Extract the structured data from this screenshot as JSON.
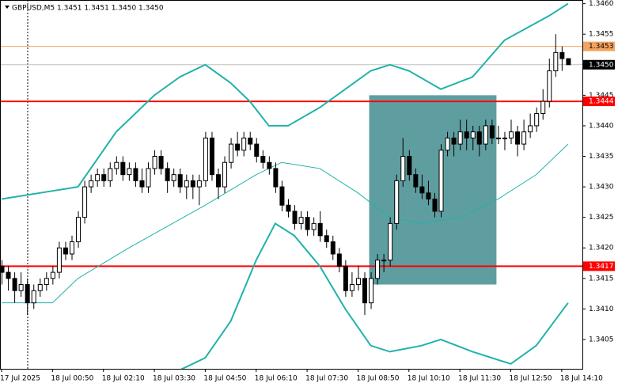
{
  "chart_data": {
    "type": "candlestick",
    "header": {
      "symbol": "GBPUSD,M5",
      "quote": "1.3451 1.3451 1.3450 1.3450"
    },
    "xlim": [
      -0.25,
      91.25
    ],
    "ylim": [
      1.34002,
      1.34606
    ],
    "yticks": [
      {
        "value": 1.346,
        "label": "1.3460"
      },
      1.3455,
      {
        "value": 1.345,
        "label": "1.3450"
      },
      1.3445,
      {
        "value": 1.344,
        "label": "1.3440"
      },
      1.3435,
      {
        "value": 1.343,
        "label": "1.3430"
      },
      1.3425,
      {
        "value": 1.342,
        "label": "1.3420"
      },
      1.3415,
      {
        "value": 1.341,
        "label": "1.3410"
      },
      1.3405
    ],
    "xticks": [
      {
        "value": 0,
        "label": "17 Jul 2025"
      },
      {
        "value": 8,
        "label": "18 Jul 00:50"
      },
      {
        "value": 16,
        "label": "18 Jul 02:10"
      },
      {
        "value": 24,
        "label": "18 Jul 03:30"
      },
      {
        "value": 32,
        "label": "18 Jul 04:50"
      },
      {
        "value": 40,
        "label": "18 Jul 06:10"
      },
      {
        "value": 48,
        "label": "18 Jul 07:30"
      },
      {
        "value": 56,
        "label": "18 Jul 08:50"
      },
      {
        "value": 64,
        "label": "18 Jul 10:10"
      },
      {
        "value": 72,
        "label": "18 Jul 11:30"
      },
      {
        "value": 80,
        "label": "18 Jul 12:50"
      },
      {
        "value": 88,
        "label": "18 Jul 14:10"
      }
    ],
    "candles": [
      [
        1.3417,
        1.3418,
        1.3414,
        1.3416
      ],
      [
        1.3416,
        1.3417,
        1.3413,
        1.3415
      ],
      [
        1.3415,
        1.3416,
        1.3411,
        1.3413
      ],
      [
        1.3413,
        1.3416,
        1.3412,
        1.3414
      ],
      [
        1.3414,
        1.3415,
        1.3409,
        1.3411
      ],
      [
        1.3411,
        1.3414,
        1.341,
        1.3413
      ],
      [
        1.3413,
        1.3415,
        1.3412,
        1.3414
      ],
      [
        1.3414,
        1.3416,
        1.3413,
        1.3415
      ],
      [
        1.3415,
        1.3417,
        1.3414,
        1.3416
      ],
      [
        1.3416,
        1.3421,
        1.3415,
        1.342
      ],
      [
        1.342,
        1.3421,
        1.3418,
        1.3419
      ],
      [
        1.3419,
        1.3422,
        1.3418,
        1.3421
      ],
      [
        1.3421,
        1.3426,
        1.342,
        1.3425
      ],
      [
        1.3425,
        1.3431,
        1.3424,
        1.343
      ],
      [
        1.343,
        1.3432,
        1.3429,
        1.3431
      ],
      [
        1.3431,
        1.3433,
        1.343,
        1.3432
      ],
      [
        1.3432,
        1.3433,
        1.343,
        1.3431
      ],
      [
        1.3431,
        1.3434,
        1.343,
        1.3433
      ],
      [
        1.3433,
        1.3435,
        1.3432,
        1.3434
      ],
      [
        1.3434,
        1.3435,
        1.3431,
        1.3432
      ],
      [
        1.3432,
        1.3434,
        1.3431,
        1.3433
      ],
      [
        1.3433,
        1.3434,
        1.343,
        1.3431
      ],
      [
        1.3431,
        1.3433,
        1.3429,
        1.343
      ],
      [
        1.343,
        1.3434,
        1.3429,
        1.3433
      ],
      [
        1.3433,
        1.3436,
        1.3432,
        1.3435
      ],
      [
        1.3435,
        1.3436,
        1.3432,
        1.3433
      ],
      [
        1.3433,
        1.3434,
        1.3429,
        1.3431
      ],
      [
        1.3431,
        1.3433,
        1.343,
        1.3432
      ],
      [
        1.3432,
        1.3433,
        1.3429,
        1.343
      ],
      [
        1.343,
        1.3432,
        1.3428,
        1.3431
      ],
      [
        1.3431,
        1.3432,
        1.3428,
        1.343
      ],
      [
        1.343,
        1.3432,
        1.3427,
        1.3431
      ],
      [
        1.3431,
        1.3439,
        1.343,
        1.3438
      ],
      [
        1.3438,
        1.3439,
        1.3431,
        1.3432
      ],
      [
        1.3432,
        1.3433,
        1.3428,
        1.343
      ],
      [
        1.343,
        1.3435,
        1.3429,
        1.3434
      ],
      [
        1.3434,
        1.3438,
        1.3433,
        1.3437
      ],
      [
        1.3437,
        1.3439,
        1.3435,
        1.3436
      ],
      [
        1.3436,
        1.3439,
        1.3435,
        1.3438
      ],
      [
        1.3438,
        1.3439,
        1.3436,
        1.3437
      ],
      [
        1.3437,
        1.3438,
        1.3434,
        1.3435
      ],
      [
        1.3435,
        1.3436,
        1.3433,
        1.3434
      ],
      [
        1.3434,
        1.3435,
        1.3432,
        1.3433
      ],
      [
        1.3433,
        1.3434,
        1.3429,
        1.343
      ],
      [
        1.343,
        1.3431,
        1.3426,
        1.3427
      ],
      [
        1.3427,
        1.3428,
        1.3425,
        1.3426
      ],
      [
        1.3426,
        1.3427,
        1.3423,
        1.3424
      ],
      [
        1.3424,
        1.3426,
        1.3423,
        1.3425
      ],
      [
        1.3425,
        1.3426,
        1.3422,
        1.3423
      ],
      [
        1.3423,
        1.3425,
        1.3422,
        1.3424
      ],
      [
        1.3424,
        1.3426,
        1.3421,
        1.3422
      ],
      [
        1.3422,
        1.3423,
        1.342,
        1.3421
      ],
      [
        1.3421,
        1.3422,
        1.3418,
        1.3419
      ],
      [
        1.3419,
        1.342,
        1.3416,
        1.3417
      ],
      [
        1.3417,
        1.3418,
        1.3412,
        1.3413
      ],
      [
        1.3413,
        1.3416,
        1.3412,
        1.3414
      ],
      [
        1.3414,
        1.3417,
        1.3413,
        1.3415
      ],
      [
        1.3415,
        1.3416,
        1.3409,
        1.3411
      ],
      [
        1.3411,
        1.3416,
        1.341,
        1.3415
      ],
      [
        1.3415,
        1.3419,
        1.3414,
        1.3418
      ],
      [
        1.3418,
        1.3419,
        1.3416,
        1.3418
      ],
      [
        1.3418,
        1.3425,
        1.3417,
        1.3424
      ],
      [
        1.3424,
        1.3432,
        1.3423,
        1.3431
      ],
      [
        1.3431,
        1.3438,
        1.343,
        1.3435
      ],
      [
        1.3435,
        1.3436,
        1.3431,
        1.3432
      ],
      [
        1.3432,
        1.3433,
        1.3429,
        1.343
      ],
      [
        1.343,
        1.3432,
        1.3428,
        1.3429
      ],
      [
        1.3429,
        1.3431,
        1.3427,
        1.3428
      ],
      [
        1.3428,
        1.3429,
        1.3425,
        1.3426
      ],
      [
        1.3426,
        1.3437,
        1.3425,
        1.3436
      ],
      [
        1.3436,
        1.3439,
        1.3435,
        1.3438
      ],
      [
        1.3438,
        1.3439,
        1.3435,
        1.3437
      ],
      [
        1.3437,
        1.3441,
        1.3436,
        1.3439
      ],
      [
        1.3439,
        1.3441,
        1.3436,
        1.3438
      ],
      [
        1.3438,
        1.344,
        1.3436,
        1.3439
      ],
      [
        1.3439,
        1.344,
        1.3435,
        1.3437
      ],
      [
        1.3437,
        1.3441,
        1.3436,
        1.344
      ],
      [
        1.344,
        1.3441,
        1.3437,
        1.3438
      ],
      [
        1.3438,
        1.344,
        1.3437,
        1.3438
      ],
      [
        1.3438,
        1.3439,
        1.3436,
        1.3438
      ],
      [
        1.3438,
        1.3441,
        1.3437,
        1.3439
      ],
      [
        1.3439,
        1.344,
        1.3435,
        1.3437
      ],
      [
        1.3437,
        1.3441,
        1.3436,
        1.3439
      ],
      [
        1.3439,
        1.3442,
        1.3438,
        1.344
      ],
      [
        1.344,
        1.3443,
        1.3439,
        1.3442
      ],
      [
        1.3442,
        1.3446,
        1.3441,
        1.3444
      ],
      [
        1.3444,
        1.3451,
        1.3443,
        1.3449
      ],
      [
        1.3449,
        1.3455,
        1.3448,
        1.3452
      ],
      [
        1.3452,
        1.3453,
        1.3449,
        1.3451
      ],
      [
        1.3451,
        1.3451,
        1.345,
        1.345
      ]
    ],
    "bands": [
      {
        "color": "#20b2aa",
        "width": 2,
        "x": [
          0,
          6,
          12,
          14,
          18,
          24,
          28,
          32,
          36,
          39,
          42,
          45,
          50,
          54,
          58,
          61,
          64,
          69,
          74,
          79,
          86,
          89
        ],
        "values": [
          1.3428,
          1.3429,
          1.343,
          1.3433,
          1.3439,
          1.3445,
          1.3448,
          1.345,
          1.3447,
          1.3444,
          1.344,
          1.344,
          1.3443,
          1.3446,
          1.3449,
          1.345,
          1.3449,
          1.3446,
          1.3448,
          1.3454,
          1.3458,
          1.346
        ]
      },
      {
        "color": "#20b2aa",
        "width": 1,
        "x": [
          0,
          8,
          12,
          20,
          32,
          40,
          44,
          50,
          56,
          61,
          66,
          72,
          78,
          84,
          89
        ],
        "values": [
          1.3411,
          1.3411,
          1.3415,
          1.342,
          1.3427,
          1.3432,
          1.3434,
          1.3433,
          1.3429,
          1.3425,
          1.3424,
          1.3425,
          1.3428,
          1.3432,
          1.3437
        ]
      },
      {
        "color": "#20b2aa",
        "width": 2,
        "x": [
          28,
          32,
          36,
          40,
          43,
          46,
          50,
          54,
          58,
          61,
          66,
          69,
          74,
          80,
          84,
          89
        ],
        "values": [
          1.34,
          1.3402,
          1.3408,
          1.3418,
          1.3424,
          1.3422,
          1.3417,
          1.341,
          1.3404,
          1.3403,
          1.3404,
          1.3405,
          1.3403,
          1.3401,
          1.3404,
          1.3411
        ]
      }
    ],
    "zone": {
      "color": "#5f9ea0",
      "x": [
        57.75,
        77.75
      ],
      "values": [
        1.3445,
        1.3414
      ]
    },
    "levels": [
      {
        "value": 1.3453,
        "label": "1.3453",
        "color": "#f4a460",
        "text_color": "#000000"
      },
      {
        "value": 1.345,
        "label": "1.3450",
        "color": "#c0c0c0",
        "text_color": "#ffffff",
        "box": "#000000"
      },
      {
        "value": 1.3444,
        "label": "1.3444",
        "color": "#ff0000",
        "text_color": "#ffffff"
      },
      {
        "value": 1.3417,
        "label": "1.3417",
        "color": "#ff0000",
        "text_color": "#ffffff"
      }
    ]
  }
}
